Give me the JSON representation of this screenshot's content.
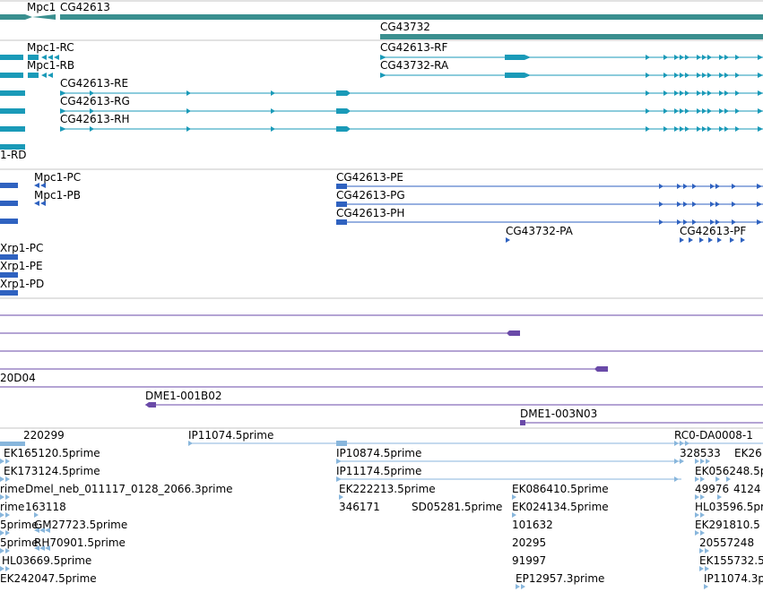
{
  "track_colors": {
    "gene": "#3a8f8f",
    "transcript_rna": "#1a9ab8",
    "transcript_protein": "#2f62c0",
    "clone": "#6a4aa8",
    "est": "#88b6dc",
    "divider": "#c4c4c4"
  },
  "gene_track": {
    "labels": [
      "Mpc1",
      "CG42613",
      "CG43732"
    ]
  },
  "rna_track": {
    "labels": [
      "Mpc1-RC",
      "Mpc1-RB",
      "CG42613-RF",
      "CG43732-RA",
      "CG42613-RE",
      "CG42613-RG",
      "CG42613-RH",
      "1-RD"
    ]
  },
  "protein_track": {
    "labels": [
      "Mpc1-PC",
      "Mpc1-PB",
      "CG42613-PE",
      "CG42613-PG",
      "CG42613-PH",
      "CG43732-PA",
      "CG42613-PF",
      "Xrp1-PC",
      "Xrp1-PE",
      "Xrp1-PD"
    ]
  },
  "clone_track": {
    "labels": [
      "20D04",
      "DME1-001B02",
      "DME1-003N03"
    ]
  },
  "est_track": {
    "labels": [
      "220299",
      "IP11074.5prime",
      "RC0-DA0008-1",
      "EK165120.5prime",
      "IP10874.5prime",
      "328533",
      "EK26",
      "EK173124.5prime",
      "IP11174.5prime",
      "EK056248.5p",
      "rime",
      "Dmel_neb_011117_0128_2066.3prime",
      "EK222213.5prime",
      "EK086410.5prime",
      "49976",
      "4124",
      "rime",
      "163118",
      "346171",
      "SD05281.5prime",
      "EK024134.5prime",
      "HL03596.5pr",
      "5prime",
      "GM27723.5prime",
      "101632",
      "EK291810.5",
      "5prime",
      "RH70901.5prime",
      "20295",
      "20557248",
      "HL03669.5prime",
      "91997",
      "EK155732.5",
      "EK242047.5prime",
      "EP12957.3prime",
      "IP11074.3p"
    ]
  }
}
